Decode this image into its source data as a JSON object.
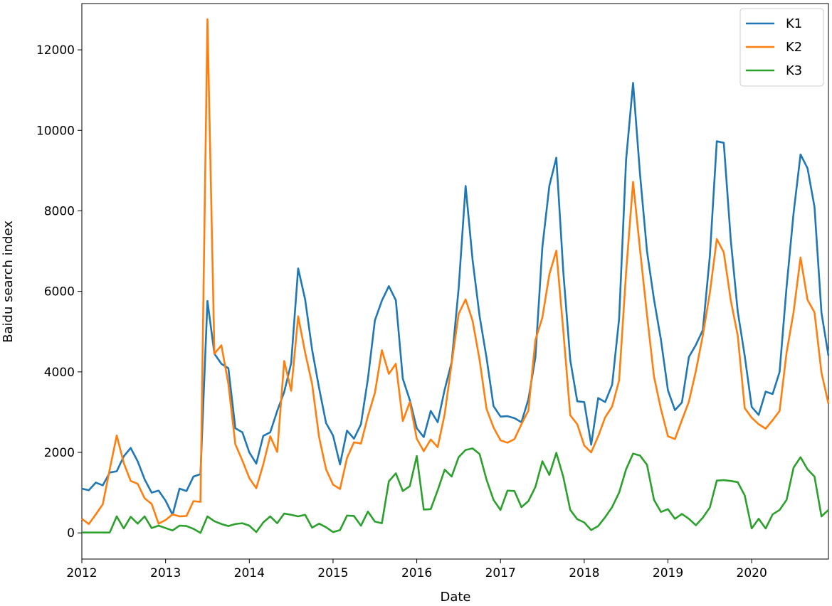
{
  "chart_data": {
    "type": "line",
    "xlabel": "Date",
    "ylabel": "Baidu search index",
    "xlim": [
      "2012-01",
      "2020-12"
    ],
    "ylim": [
      -650,
      13150
    ],
    "x_ticks": [
      "2012",
      "2013",
      "2014",
      "2015",
      "2016",
      "2017",
      "2018",
      "2019",
      "2020"
    ],
    "y_ticks": [
      0,
      2000,
      4000,
      6000,
      8000,
      10000,
      12000
    ],
    "grid": false,
    "legend_position": "top-right",
    "x": [
      "2012-01",
      "2012-02",
      "2012-03",
      "2012-04",
      "2012-05",
      "2012-06",
      "2012-07",
      "2012-08",
      "2012-09",
      "2012-10",
      "2012-11",
      "2012-12",
      "2013-01",
      "2013-02",
      "2013-03",
      "2013-04",
      "2013-05",
      "2013-06",
      "2013-07",
      "2013-08",
      "2013-09",
      "2013-10",
      "2013-11",
      "2013-12",
      "2014-01",
      "2014-02",
      "2014-03",
      "2014-04",
      "2014-05",
      "2014-06",
      "2014-07",
      "2014-08",
      "2014-09",
      "2014-10",
      "2014-11",
      "2014-12",
      "2015-01",
      "2015-02",
      "2015-03",
      "2015-04",
      "2015-05",
      "2015-06",
      "2015-07",
      "2015-08",
      "2015-09",
      "2015-10",
      "2015-11",
      "2015-12",
      "2016-01",
      "2016-02",
      "2016-03",
      "2016-04",
      "2016-05",
      "2016-06",
      "2016-07",
      "2016-08",
      "2016-09",
      "2016-10",
      "2016-11",
      "2016-12",
      "2017-01",
      "2017-02",
      "2017-03",
      "2017-04",
      "2017-05",
      "2017-06",
      "2017-07",
      "2017-08",
      "2017-09",
      "2017-10",
      "2017-11",
      "2017-12",
      "2018-01",
      "2018-02",
      "2018-03",
      "2018-04",
      "2018-05",
      "2018-06",
      "2018-07",
      "2018-08",
      "2018-09",
      "2018-10",
      "2018-11",
      "2018-12",
      "2019-01",
      "2019-02",
      "2019-03",
      "2019-04",
      "2019-05",
      "2019-06",
      "2019-07",
      "2019-08",
      "2019-09",
      "2019-10",
      "2019-11",
      "2019-12",
      "2020-01",
      "2020-02",
      "2020-03",
      "2020-04",
      "2020-05",
      "2020-06",
      "2020-07",
      "2020-08",
      "2020-09",
      "2020-10",
      "2020-11",
      "2020-12"
    ],
    "series": [
      {
        "name": "K1",
        "color": "#1f77b4",
        "values": [
          1100,
          1060,
          1250,
          1180,
          1500,
          1530,
          1900,
          2110,
          1780,
          1330,
          1000,
          1050,
          800,
          450,
          1100,
          1040,
          1400,
          1460,
          5760,
          4450,
          4200,
          4090,
          2600,
          2500,
          2000,
          1720,
          2410,
          2500,
          3030,
          3500,
          4220,
          6570,
          5800,
          4550,
          3600,
          2730,
          2420,
          1700,
          2540,
          2340,
          2700,
          3830,
          5280,
          5770,
          6130,
          5780,
          3830,
          3300,
          2600,
          2380,
          3030,
          2750,
          3560,
          4240,
          6070,
          8620,
          6780,
          5390,
          4350,
          3150,
          2890,
          2900,
          2850,
          2750,
          3320,
          4360,
          7100,
          8620,
          9320,
          6490,
          4290,
          3270,
          3250,
          2190,
          3350,
          3250,
          3680,
          5320,
          9270,
          11180,
          8900,
          6990,
          5800,
          4790,
          3540,
          3050,
          3240,
          4370,
          4670,
          5040,
          6870,
          9730,
          9690,
          7280,
          5500,
          4400,
          3130,
          2930,
          3510,
          3450,
          4000,
          6110,
          7940,
          9400,
          9060,
          8100,
          5470,
          4400
        ]
      },
      {
        "name": "K2",
        "color": "#ff7f0e",
        "values": [
          350,
          220,
          460,
          710,
          1580,
          2420,
          1740,
          1290,
          1220,
          860,
          720,
          230,
          320,
          460,
          410,
          420,
          790,
          770,
          12760,
          4450,
          4660,
          3700,
          2200,
          1800,
          1360,
          1110,
          1700,
          2400,
          2010,
          4270,
          3530,
          5380,
          4480,
          3700,
          2380,
          1580,
          1200,
          1090,
          1860,
          2250,
          2220,
          2900,
          3480,
          4540,
          3950,
          4200,
          2780,
          3250,
          2340,
          2030,
          2320,
          2130,
          2950,
          4210,
          5440,
          5800,
          5270,
          4300,
          3080,
          2620,
          2300,
          2240,
          2330,
          2700,
          3040,
          4790,
          5350,
          6420,
          7010,
          5020,
          2920,
          2700,
          2170,
          2000,
          2400,
          2870,
          3140,
          3790,
          6470,
          8720,
          7030,
          5410,
          3880,
          3070,
          2400,
          2330,
          2800,
          3260,
          4020,
          4910,
          5960,
          7300,
          6970,
          5780,
          4900,
          3100,
          2860,
          2700,
          2590,
          2800,
          3030,
          4480,
          5480,
          6840,
          5790,
          5480,
          3980,
          3210
        ]
      },
      {
        "name": "K3",
        "color": "#2ca02c",
        "values": [
          10,
          10,
          10,
          10,
          10,
          410,
          110,
          400,
          230,
          410,
          120,
          180,
          120,
          60,
          180,
          170,
          100,
          0,
          410,
          290,
          220,
          170,
          220,
          240,
          180,
          20,
          260,
          410,
          240,
          480,
          450,
          410,
          450,
          130,
          230,
          140,
          20,
          70,
          430,
          420,
          180,
          530,
          280,
          240,
          1280,
          1480,
          1040,
          1160,
          1910,
          580,
          590,
          1060,
          1570,
          1400,
          1880,
          2060,
          2100,
          1960,
          1320,
          820,
          570,
          1050,
          1040,
          640,
          790,
          1140,
          1780,
          1440,
          1990,
          1390,
          570,
          340,
          260,
          70,
          170,
          390,
          640,
          1000,
          1580,
          1970,
          1920,
          1690,
          820,
          520,
          590,
          350,
          470,
          350,
          190,
          380,
          630,
          1300,
          1310,
          1290,
          1260,
          930,
          110,
          350,
          110,
          460,
          570,
          820,
          1620,
          1880,
          1580,
          1400,
          410,
          570
        ]
      }
    ]
  }
}
